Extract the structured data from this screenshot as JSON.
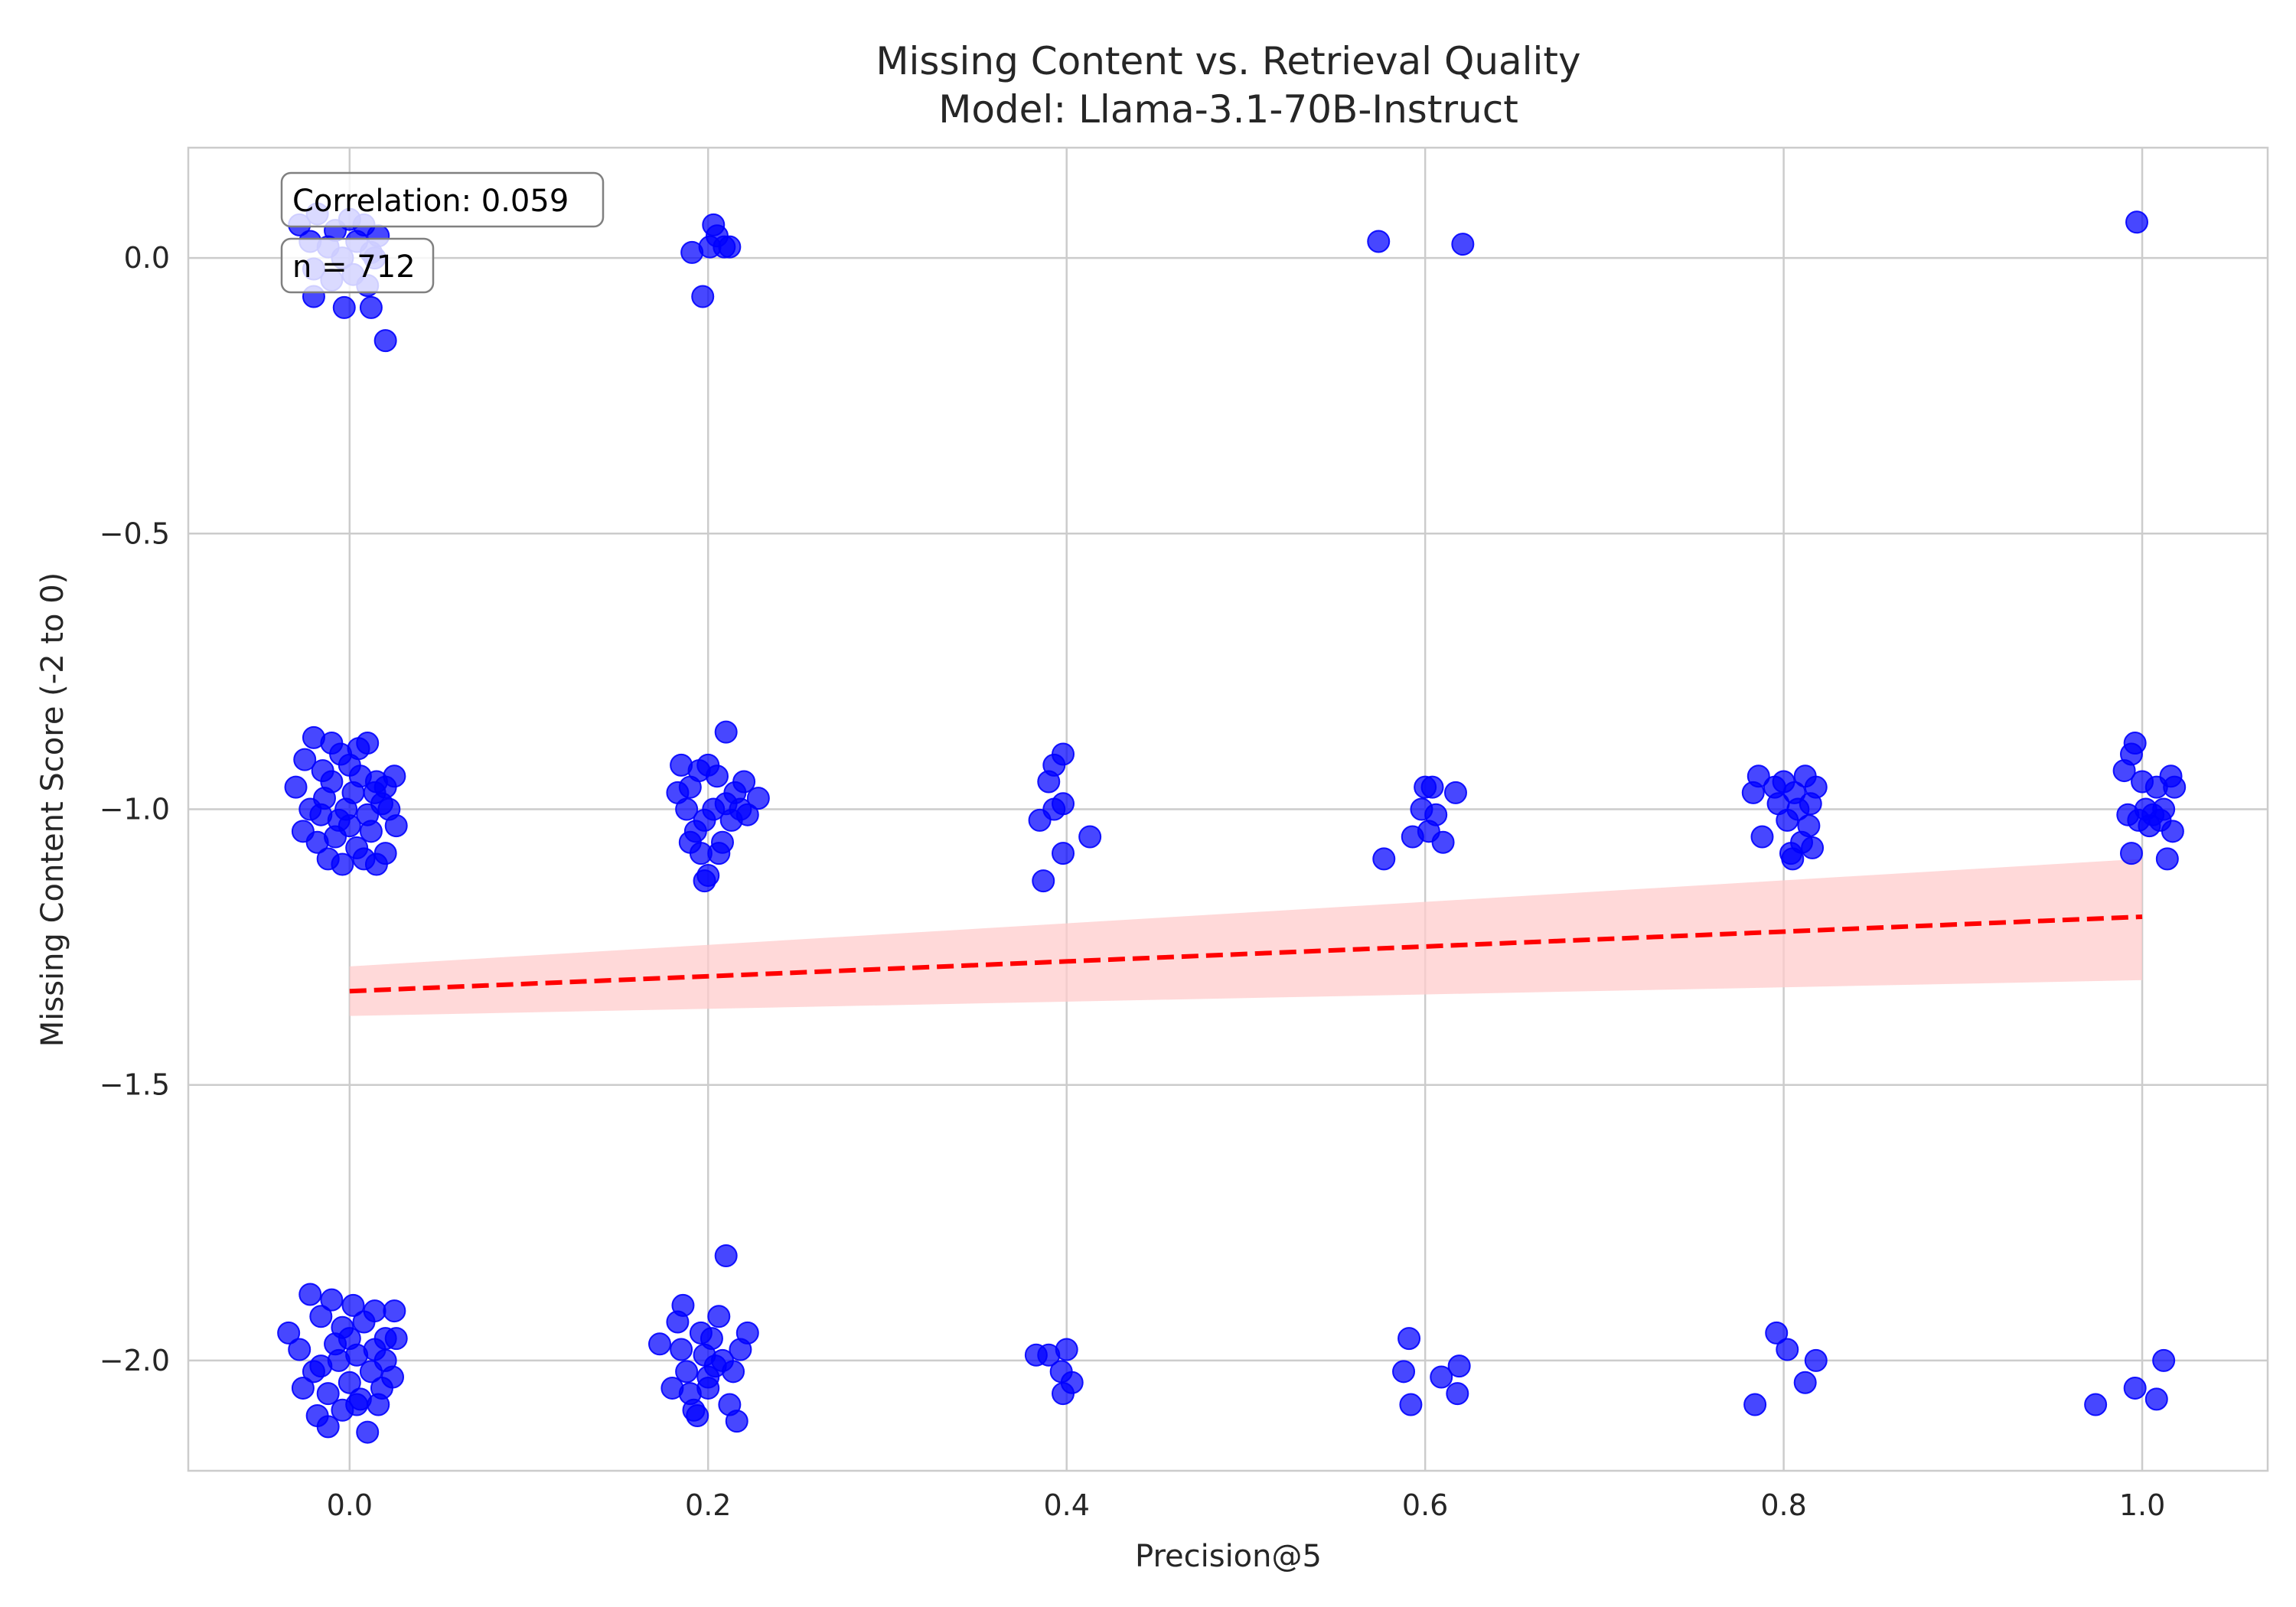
{
  "chart_data": {
    "type": "scatter",
    "title": "Missing Content vs. Retrieval Quality",
    "subtitle": "Model: Llama-3.1-70B-Instruct",
    "xlabel": "Precision@5",
    "ylabel": "Missing Content Score (-2 to 0)",
    "xlim": [
      -0.09,
      1.07
    ],
    "ylim": [
      -2.2,
      0.2
    ],
    "x_ticks": [
      0.0,
      0.2,
      0.4,
      0.6,
      0.8,
      1.0
    ],
    "x_tick_labels": [
      "0.0",
      "0.2",
      "0.4",
      "0.6",
      "0.8",
      "1.0"
    ],
    "y_ticks": [
      0.0,
      -0.5,
      -1.0,
      -1.5,
      -2.0
    ],
    "y_tick_labels": [
      "0.0",
      "−0.5",
      "−1.0",
      "−1.5",
      "−2.0"
    ],
    "grid": true,
    "annotations": [
      "Correlation: 0.059",
      "n = 712"
    ],
    "point_color": "#0000ff",
    "trend": {
      "style": "dashed",
      "color": "#ff0000",
      "band_color": "#ffcccc",
      "x": [
        0.0,
        1.0
      ],
      "y": [
        -1.33,
        -1.195
      ],
      "band_lower": [
        -1.375,
        -1.31
      ],
      "band_upper": [
        -1.285,
        -1.09
      ]
    },
    "points": [
      {
        "x": -0.028,
        "y": 0.06
      },
      {
        "x": -0.022,
        "y": 0.03
      },
      {
        "x": -0.018,
        "y": 0.08
      },
      {
        "x": -0.012,
        "y": 0.02
      },
      {
        "x": -0.008,
        "y": 0.05
      },
      {
        "x": -0.004,
        "y": 0.0
      },
      {
        "x": 0.0,
        "y": 0.07
      },
      {
        "x": 0.004,
        "y": 0.03
      },
      {
        "x": 0.008,
        "y": 0.06
      },
      {
        "x": 0.012,
        "y": 0.01
      },
      {
        "x": 0.016,
        "y": 0.04
      },
      {
        "x": -0.02,
        "y": -0.02
      },
      {
        "x": -0.01,
        "y": -0.04
      },
      {
        "x": 0.002,
        "y": -0.03
      },
      {
        "x": 0.01,
        "y": -0.05
      },
      {
        "x": -0.02,
        "y": -0.07
      },
      {
        "x": -0.003,
        "y": -0.09
      },
      {
        "x": 0.012,
        "y": -0.09
      },
      {
        "x": 0.02,
        "y": -0.15
      },
      {
        "x": 0.014,
        "y": 0.0
      },
      {
        "x": 0.191,
        "y": 0.01
      },
      {
        "x": 0.197,
        "y": -0.07
      },
      {
        "x": 0.201,
        "y": 0.02
      },
      {
        "x": 0.203,
        "y": 0.06
      },
      {
        "x": 0.205,
        "y": 0.04
      },
      {
        "x": 0.209,
        "y": 0.02
      },
      {
        "x": 0.212,
        "y": 0.02
      },
      {
        "x": 0.574,
        "y": 0.03
      },
      {
        "x": 0.621,
        "y": 0.025
      },
      {
        "x": 0.997,
        "y": 0.065
      },
      {
        "x": -0.03,
        "y": -0.96
      },
      {
        "x": -0.025,
        "y": -0.91
      },
      {
        "x": -0.02,
        "y": -0.87
      },
      {
        "x": -0.015,
        "y": -0.93
      },
      {
        "x": -0.01,
        "y": -0.88
      },
      {
        "x": -0.005,
        "y": -0.9
      },
      {
        "x": 0.0,
        "y": -0.92
      },
      {
        "x": 0.005,
        "y": -0.89
      },
      {
        "x": 0.01,
        "y": -0.88
      },
      {
        "x": 0.015,
        "y": -0.95
      },
      {
        "x": 0.02,
        "y": -0.96
      },
      {
        "x": 0.025,
        "y": -0.94
      },
      {
        "x": -0.022,
        "y": -1.0
      },
      {
        "x": -0.014,
        "y": -0.98
      },
      {
        "x": -0.006,
        "y": -1.02
      },
      {
        "x": 0.002,
        "y": -0.97
      },
      {
        "x": 0.01,
        "y": -1.01
      },
      {
        "x": 0.018,
        "y": -0.99
      },
      {
        "x": -0.026,
        "y": -1.04
      },
      {
        "x": -0.018,
        "y": -1.06
      },
      {
        "x": -0.008,
        "y": -1.05
      },
      {
        "x": 0.004,
        "y": -1.07
      },
      {
        "x": 0.012,
        "y": -1.04
      },
      {
        "x": 0.02,
        "y": -1.08
      },
      {
        "x": 0.026,
        "y": -1.03
      },
      {
        "x": -0.012,
        "y": -1.09
      },
      {
        "x": -0.004,
        "y": -1.1
      },
      {
        "x": 0.008,
        "y": -1.09
      },
      {
        "x": 0.015,
        "y": -1.1
      },
      {
        "x": -0.016,
        "y": -1.01
      },
      {
        "x": 0.006,
        "y": -0.94
      },
      {
        "x": -0.002,
        "y": -1.0
      },
      {
        "x": 0.014,
        "y": -0.97
      },
      {
        "x": -0.01,
        "y": -0.95
      },
      {
        "x": 0.0,
        "y": -1.03
      },
      {
        "x": 0.022,
        "y": -1.0
      },
      {
        "x": 0.185,
        "y": -0.92
      },
      {
        "x": 0.19,
        "y": -0.96
      },
      {
        "x": 0.195,
        "y": -0.93
      },
      {
        "x": 0.2,
        "y": -0.92
      },
      {
        "x": 0.205,
        "y": -0.94
      },
      {
        "x": 0.21,
        "y": -0.86
      },
      {
        "x": 0.215,
        "y": -0.97
      },
      {
        "x": 0.22,
        "y": -0.95
      },
      {
        "x": 0.228,
        "y": -0.98
      },
      {
        "x": 0.183,
        "y": -0.97
      },
      {
        "x": 0.188,
        "y": -1.0
      },
      {
        "x": 0.193,
        "y": -1.04
      },
      {
        "x": 0.198,
        "y": -1.02
      },
      {
        "x": 0.203,
        "y": -1.0
      },
      {
        "x": 0.208,
        "y": -1.06
      },
      {
        "x": 0.213,
        "y": -1.02
      },
      {
        "x": 0.218,
        "y": -1.0
      },
      {
        "x": 0.222,
        "y": -1.01
      },
      {
        "x": 0.19,
        "y": -1.06
      },
      {
        "x": 0.196,
        "y": -1.08
      },
      {
        "x": 0.2,
        "y": -1.12
      },
      {
        "x": 0.206,
        "y": -1.08
      },
      {
        "x": 0.198,
        "y": -1.13
      },
      {
        "x": 0.21,
        "y": -0.99
      },
      {
        "x": 0.385,
        "y": -1.02
      },
      {
        "x": 0.387,
        "y": -1.13
      },
      {
        "x": 0.39,
        "y": -0.95
      },
      {
        "x": 0.393,
        "y": -0.92
      },
      {
        "x": 0.393,
        "y": -1.0
      },
      {
        "x": 0.398,
        "y": -0.99
      },
      {
        "x": 0.398,
        "y": -0.9
      },
      {
        "x": 0.398,
        "y": -1.08
      },
      {
        "x": 0.413,
        "y": -1.05
      },
      {
        "x": 0.577,
        "y": -1.09
      },
      {
        "x": 0.593,
        "y": -1.05
      },
      {
        "x": 0.598,
        "y": -1.0
      },
      {
        "x": 0.6,
        "y": -0.96
      },
      {
        "x": 0.602,
        "y": -1.04
      },
      {
        "x": 0.604,
        "y": -0.96
      },
      {
        "x": 0.606,
        "y": -1.01
      },
      {
        "x": 0.61,
        "y": -1.06
      },
      {
        "x": 0.617,
        "y": -0.97
      },
      {
        "x": 0.783,
        "y": -0.97
      },
      {
        "x": 0.786,
        "y": -0.94
      },
      {
        "x": 0.788,
        "y": -1.05
      },
      {
        "x": 0.795,
        "y": -0.96
      },
      {
        "x": 0.797,
        "y": -0.99
      },
      {
        "x": 0.8,
        "y": -0.95
      },
      {
        "x": 0.802,
        "y": -1.02
      },
      {
        "x": 0.804,
        "y": -1.08
      },
      {
        "x": 0.806,
        "y": -0.97
      },
      {
        "x": 0.808,
        "y": -1.0
      },
      {
        "x": 0.81,
        "y": -1.06
      },
      {
        "x": 0.812,
        "y": -0.94
      },
      {
        "x": 0.814,
        "y": -1.03
      },
      {
        "x": 0.816,
        "y": -1.07
      },
      {
        "x": 0.818,
        "y": -0.96
      },
      {
        "x": 0.815,
        "y": -0.99
      },
      {
        "x": 0.805,
        "y": -1.09
      },
      {
        "x": 0.99,
        "y": -0.93
      },
      {
        "x": 0.992,
        "y": -1.01
      },
      {
        "x": 0.994,
        "y": -1.08
      },
      {
        "x": 0.994,
        "y": -0.9
      },
      {
        "x": 0.996,
        "y": -0.88
      },
      {
        "x": 0.998,
        "y": -1.02
      },
      {
        "x": 1.0,
        "y": -0.95
      },
      {
        "x": 1.002,
        "y": -1.0
      },
      {
        "x": 1.004,
        "y": -1.03
      },
      {
        "x": 1.006,
        "y": -1.01
      },
      {
        "x": 1.008,
        "y": -0.96
      },
      {
        "x": 1.01,
        "y": -1.02
      },
      {
        "x": 1.012,
        "y": -1.0
      },
      {
        "x": 1.014,
        "y": -1.09
      },
      {
        "x": 1.016,
        "y": -0.94
      },
      {
        "x": 1.017,
        "y": -1.04
      },
      {
        "x": 1.018,
        "y": -0.96
      },
      {
        "x": -0.034,
        "y": -1.95
      },
      {
        "x": -0.028,
        "y": -1.98
      },
      {
        "x": -0.022,
        "y": -1.88
      },
      {
        "x": -0.016,
        "y": -1.92
      },
      {
        "x": -0.01,
        "y": -1.89
      },
      {
        "x": -0.004,
        "y": -1.94
      },
      {
        "x": 0.002,
        "y": -1.9
      },
      {
        "x": 0.008,
        "y": -1.93
      },
      {
        "x": 0.014,
        "y": -1.91
      },
      {
        "x": 0.02,
        "y": -1.96
      },
      {
        "x": 0.025,
        "y": -1.91
      },
      {
        "x": 0.026,
        "y": -1.96
      },
      {
        "x": -0.026,
        "y": -2.05
      },
      {
        "x": -0.02,
        "y": -2.02
      },
      {
        "x": -0.012,
        "y": -2.06
      },
      {
        "x": -0.006,
        "y": -2.0
      },
      {
        "x": 0.0,
        "y": -2.04
      },
      {
        "x": 0.006,
        "y": -2.07
      },
      {
        "x": 0.012,
        "y": -2.02
      },
      {
        "x": 0.018,
        "y": -2.05
      },
      {
        "x": 0.024,
        "y": -2.03
      },
      {
        "x": -0.018,
        "y": -2.1
      },
      {
        "x": -0.012,
        "y": -2.12
      },
      {
        "x": -0.004,
        "y": -2.09
      },
      {
        "x": 0.004,
        "y": -2.08
      },
      {
        "x": 0.01,
        "y": -2.13
      },
      {
        "x": 0.016,
        "y": -2.08
      },
      {
        "x": -0.008,
        "y": -1.97
      },
      {
        "x": 0.004,
        "y": -1.99
      },
      {
        "x": 0.014,
        "y": -1.98
      },
      {
        "x": -0.016,
        "y": -2.01
      },
      {
        "x": 0.02,
        "y": -2.0
      },
      {
        "x": 0.0,
        "y": -1.96
      },
      {
        "x": 0.173,
        "y": -1.97
      },
      {
        "x": 0.18,
        "y": -2.05
      },
      {
        "x": 0.183,
        "y": -1.93
      },
      {
        "x": 0.186,
        "y": -1.9
      },
      {
        "x": 0.188,
        "y": -2.02
      },
      {
        "x": 0.19,
        "y": -2.06
      },
      {
        "x": 0.192,
        "y": -2.09
      },
      {
        "x": 0.194,
        "y": -2.1
      },
      {
        "x": 0.196,
        "y": -1.95
      },
      {
        "x": 0.198,
        "y": -1.99
      },
      {
        "x": 0.2,
        "y": -2.03
      },
      {
        "x": 0.202,
        "y": -1.96
      },
      {
        "x": 0.204,
        "y": -2.01
      },
      {
        "x": 0.206,
        "y": -1.92
      },
      {
        "x": 0.208,
        "y": -2.0
      },
      {
        "x": 0.21,
        "y": -1.81
      },
      {
        "x": 0.212,
        "y": -2.08
      },
      {
        "x": 0.214,
        "y": -2.02
      },
      {
        "x": 0.216,
        "y": -2.11
      },
      {
        "x": 0.218,
        "y": -1.98
      },
      {
        "x": 0.222,
        "y": -1.95
      },
      {
        "x": 0.185,
        "y": -1.98
      },
      {
        "x": 0.2,
        "y": -2.05
      },
      {
        "x": 0.383,
        "y": -1.99
      },
      {
        "x": 0.39,
        "y": -1.99
      },
      {
        "x": 0.397,
        "y": -2.02
      },
      {
        "x": 0.398,
        "y": -2.06
      },
      {
        "x": 0.4,
        "y": -1.98
      },
      {
        "x": 0.403,
        "y": -2.04
      },
      {
        "x": 0.588,
        "y": -2.02
      },
      {
        "x": 0.591,
        "y": -1.96
      },
      {
        "x": 0.592,
        "y": -2.08
      },
      {
        "x": 0.609,
        "y": -2.03
      },
      {
        "x": 0.618,
        "y": -2.06
      },
      {
        "x": 0.619,
        "y": -2.01
      },
      {
        "x": 0.784,
        "y": -2.08
      },
      {
        "x": 0.796,
        "y": -1.95
      },
      {
        "x": 0.802,
        "y": -1.98
      },
      {
        "x": 0.812,
        "y": -2.04
      },
      {
        "x": 0.818,
        "y": -2.0
      },
      {
        "x": 0.974,
        "y": -2.08
      },
      {
        "x": 0.996,
        "y": -2.05
      },
      {
        "x": 1.008,
        "y": -2.07
      },
      {
        "x": 1.012,
        "y": -2.0
      }
    ]
  }
}
